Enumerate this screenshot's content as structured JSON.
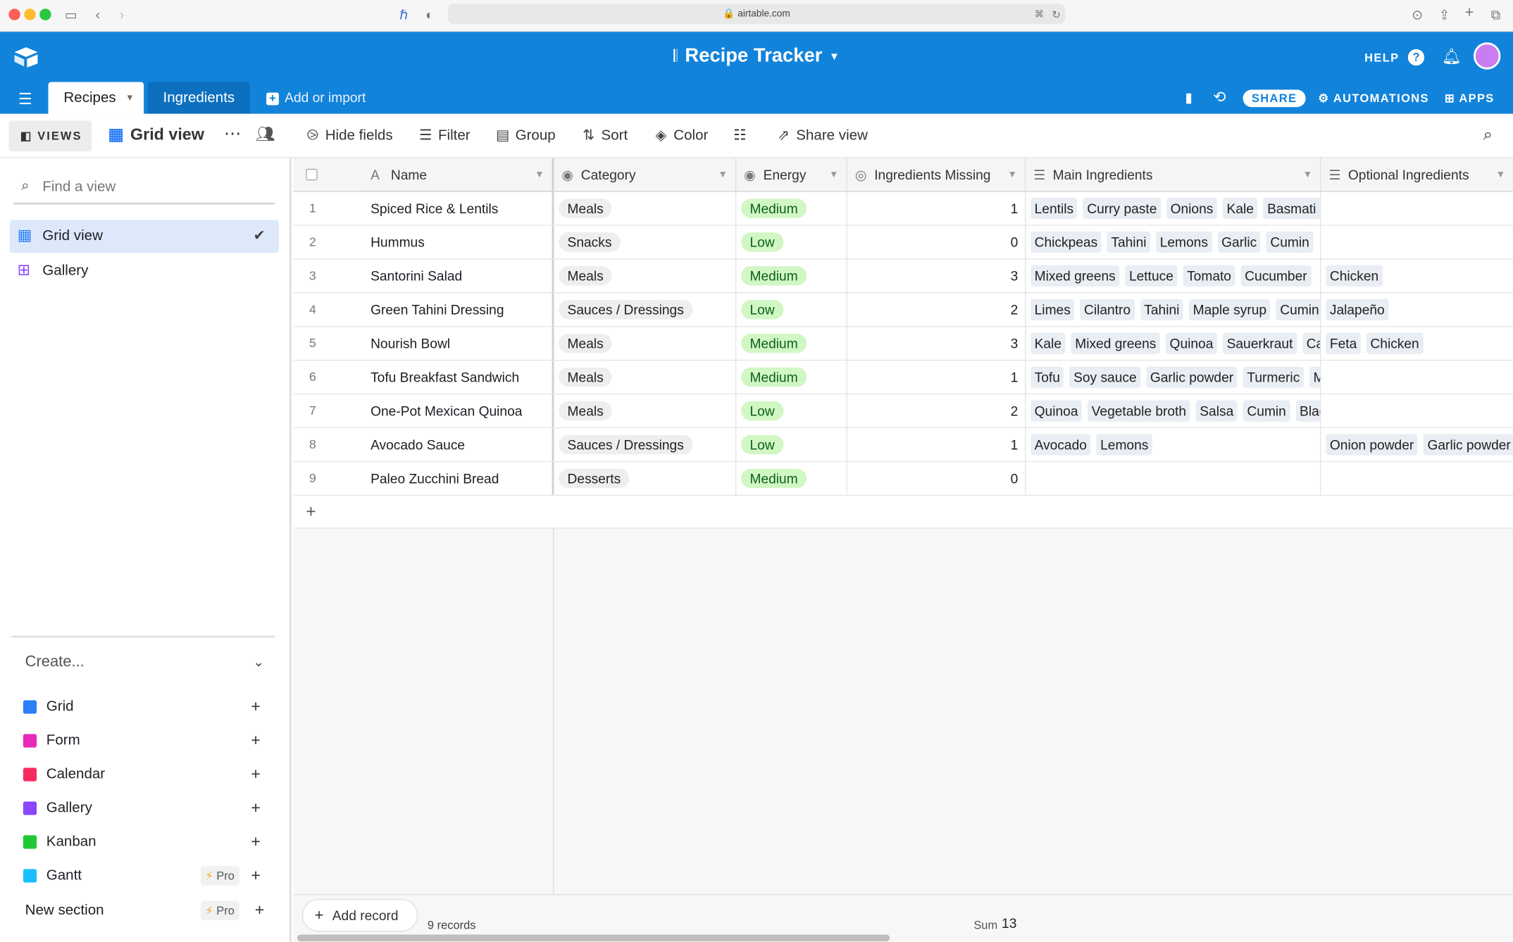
{
  "browser": {
    "url": "airtable.com"
  },
  "base": {
    "title": "Recipe Tracker"
  },
  "tabs": [
    {
      "label": "Recipes"
    },
    {
      "label": "Ingredients"
    }
  ],
  "add_import": "Add or import",
  "header_right": {
    "help": "HELP",
    "share": "SHARE",
    "automations": "AUTOMATIONS",
    "apps": "APPS"
  },
  "toolbar": {
    "views": "VIEWS",
    "current_view": "Grid view",
    "hide_fields": "Hide fields",
    "filter": "Filter",
    "group": "Group",
    "sort": "Sort",
    "color": "Color",
    "share_view": "Share view"
  },
  "sidebar": {
    "find_placeholder": "Find a view",
    "views": [
      {
        "label": "Grid view"
      },
      {
        "label": "Gallery"
      }
    ],
    "create_label": "Create...",
    "create_items": [
      {
        "label": "Grid",
        "color": "#2d7ff9",
        "pro": ""
      },
      {
        "label": "Form",
        "color": "#e929ba",
        "pro": ""
      },
      {
        "label": "Calendar",
        "color": "#f82b60",
        "pro": ""
      },
      {
        "label": "Gallery",
        "color": "#8b46ff",
        "pro": ""
      },
      {
        "label": "Kanban",
        "color": "#20c933",
        "pro": ""
      },
      {
        "label": "Gantt",
        "color": "#18bfff",
        "pro": "Pro"
      }
    ],
    "new_section": "New section",
    "new_section_pro": "Pro"
  },
  "columns": {
    "name": "Name",
    "category": "Category",
    "energy": "Energy",
    "missing": "Ingredients Missing",
    "main": "Main Ingredients",
    "optional": "Optional Ingredients"
  },
  "rows": [
    {
      "num": "1",
      "name": "Spiced Rice & Lentils",
      "category": "Meals",
      "energy": "Medium",
      "missing": "1",
      "main": [
        "Lentils",
        "Curry paste",
        "Onions",
        "Kale",
        "Basmati r"
      ],
      "optional": []
    },
    {
      "num": "2",
      "name": "Hummus",
      "category": "Snacks",
      "energy": "Low",
      "missing": "0",
      "main": [
        "Chickpeas",
        "Tahini",
        "Lemons",
        "Garlic",
        "Cumin"
      ],
      "optional": []
    },
    {
      "num": "3",
      "name": "Santorini Salad",
      "category": "Meals",
      "energy": "Medium",
      "missing": "3",
      "main": [
        "Mixed greens",
        "Lettuce",
        "Tomato",
        "Cucumber"
      ],
      "optional": [
        "Chicken"
      ]
    },
    {
      "num": "4",
      "name": "Green Tahini Dressing",
      "category": "Sauces / Dressings",
      "energy": "Low",
      "missing": "2",
      "main": [
        "Limes",
        "Cilantro",
        "Tahini",
        "Maple syrup",
        "Cumin"
      ],
      "optional": [
        "Jalapeño"
      ]
    },
    {
      "num": "5",
      "name": "Nourish Bowl",
      "category": "Meals",
      "energy": "Medium",
      "missing": "3",
      "main": [
        "Kale",
        "Mixed greens",
        "Quinoa",
        "Sauerkraut",
        "Ca"
      ],
      "optional": [
        "Feta",
        "Chicken"
      ]
    },
    {
      "num": "6",
      "name": "Tofu Breakfast Sandwich",
      "category": "Meals",
      "energy": "Medium",
      "missing": "1",
      "main": [
        "Tofu",
        "Soy sauce",
        "Garlic powder",
        "Turmeric",
        "M"
      ],
      "optional": []
    },
    {
      "num": "7",
      "name": "One-Pot Mexican Quinoa",
      "category": "Meals",
      "energy": "Low",
      "missing": "2",
      "main": [
        "Quinoa",
        "Vegetable broth",
        "Salsa",
        "Cumin",
        "Blac"
      ],
      "optional": []
    },
    {
      "num": "8",
      "name": "Avocado Sauce",
      "category": "Sauces / Dressings",
      "energy": "Low",
      "missing": "1",
      "main": [
        "Avocado",
        "Lemons"
      ],
      "optional": [
        "Onion powder",
        "Garlic powder"
      ]
    },
    {
      "num": "9",
      "name": "Paleo Zucchini Bread",
      "category": "Desserts",
      "energy": "Medium",
      "missing": "0",
      "main": [],
      "optional": []
    }
  ],
  "footer": {
    "add_record": "Add record",
    "records": "9 records",
    "sum_label": "Sum",
    "sum_value": "13"
  }
}
